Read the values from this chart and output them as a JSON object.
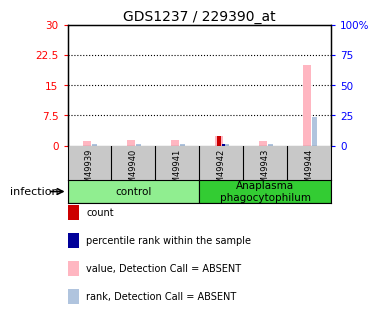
{
  "title": "GDS1237 / 229390_at",
  "samples": [
    "GSM49939",
    "GSM49940",
    "GSM49941",
    "GSM49942",
    "GSM49943",
    "GSM49944"
  ],
  "left_ylim": [
    0,
    30
  ],
  "right_ylim": [
    0,
    100
  ],
  "left_yticks": [
    0,
    7.5,
    15,
    22.5,
    30
  ],
  "left_yticklabels": [
    "0",
    "7.5",
    "15",
    "22.5",
    "30"
  ],
  "right_yticks": [
    0,
    25,
    50,
    75,
    100
  ],
  "right_yticklabels": [
    "0",
    "25",
    "50",
    "75",
    "100%"
  ],
  "value_absent": [
    1.1,
    1.4,
    1.3,
    2.5,
    1.1,
    20.0
  ],
  "rank_absent": [
    0.5,
    0.5,
    0.5,
    0.5,
    0.5,
    7.0
  ],
  "count": [
    0,
    0,
    0,
    2.5,
    0,
    0
  ],
  "percentile_rank": [
    0,
    0,
    0,
    0.4,
    0,
    0
  ],
  "color_value_absent": "#FFB6C1",
  "color_rank_absent": "#B0C4DE",
  "color_count": "#CC0000",
  "color_percentile": "#000099",
  "groups": [
    {
      "label": "control",
      "start": 0,
      "end": 3,
      "color": "#90EE90"
    },
    {
      "label": "Anaplasma\nphagocytophilum",
      "start": 3,
      "end": 6,
      "color": "#33CC33"
    }
  ],
  "infection_label": "infection",
  "legend_items": [
    {
      "color": "#CC0000",
      "label": "count"
    },
    {
      "color": "#000099",
      "label": "percentile rank within the sample"
    },
    {
      "color": "#FFB6C1",
      "label": "value, Detection Call = ABSENT"
    },
    {
      "color": "#B0C4DE",
      "label": "rank, Detection Call = ABSENT"
    }
  ],
  "background_color": "#ffffff",
  "sample_area_color": "#C8C8C8",
  "dotgrid_color": "black",
  "left_ytick_color": "red",
  "right_ytick_color": "blue"
}
